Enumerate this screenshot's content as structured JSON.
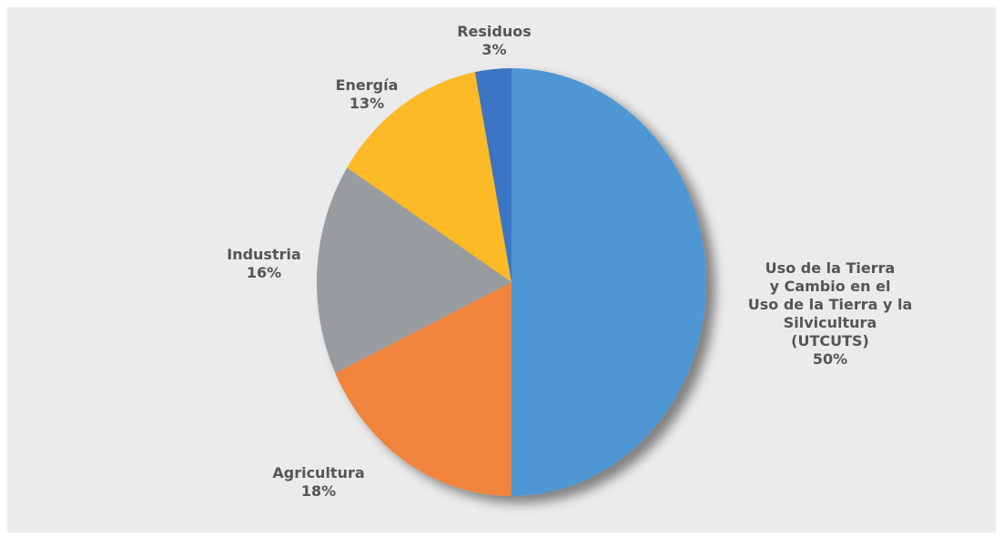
{
  "chart_data": {
    "type": "pie",
    "categories": [
      "Uso de la Tierra\ny Cambio en el\nUso de la Tierra y la\nSilvicultura\n(UTCUTS)",
      "Agricultura",
      "Industria",
      "Energía",
      "Residuos"
    ],
    "values": [
      50,
      18,
      16,
      13,
      3
    ],
    "value_labels": [
      "50%",
      "18%",
      "16%",
      "13%",
      "3%"
    ],
    "colors": [
      "#4f97d4",
      "#f0843c",
      "#999c9f",
      "#fbba26",
      "#3a74c3"
    ]
  }
}
